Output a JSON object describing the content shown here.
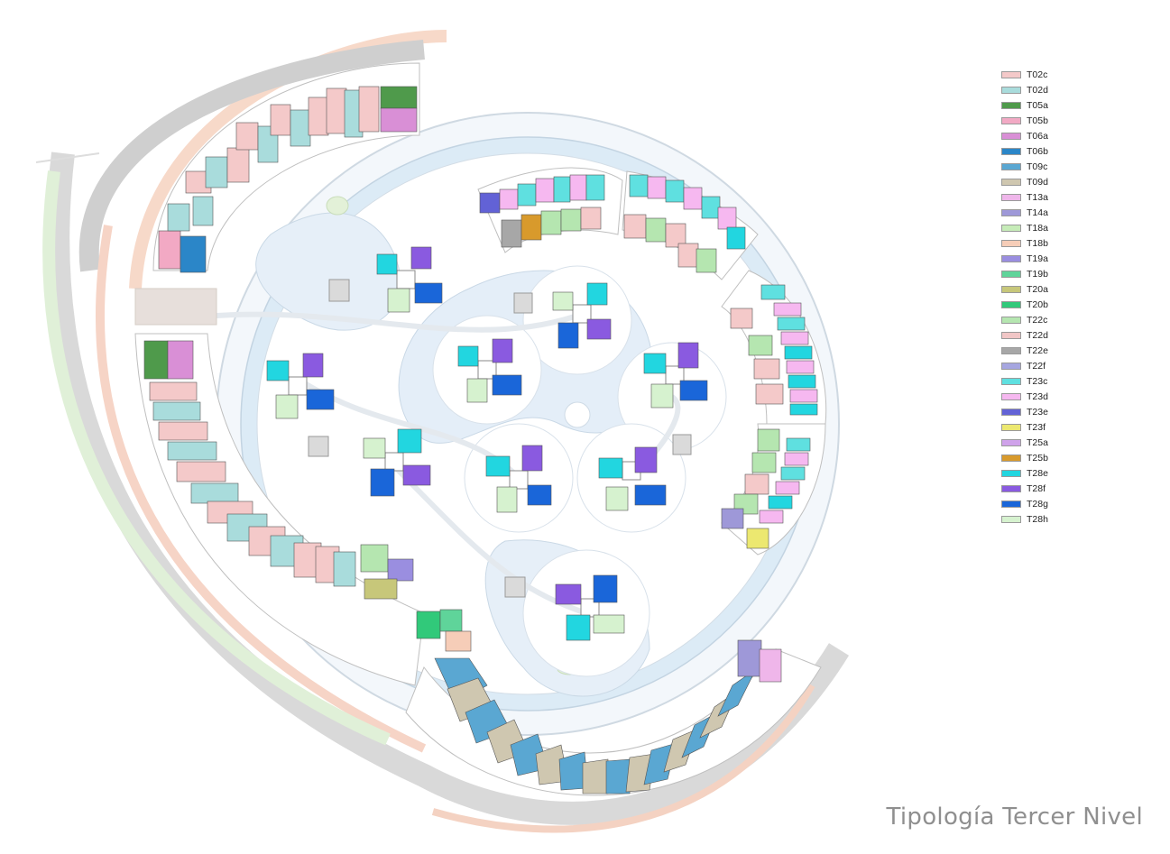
{
  "title": "Tipología Tercer Nivel",
  "legend": [
    {
      "code": "T02c",
      "color": "#f4c9c9"
    },
    {
      "code": "T02d",
      "color": "#a9dcdc"
    },
    {
      "code": "T05a",
      "color": "#4f9a4b"
    },
    {
      "code": "T05b",
      "color": "#f2a9c4"
    },
    {
      "code": "T06a",
      "color": "#d98fd6"
    },
    {
      "code": "T06b",
      "color": "#2b86c8"
    },
    {
      "code": "T09c",
      "color": "#5aa7d2"
    },
    {
      "code": "T09d",
      "color": "#cfc7b0"
    },
    {
      "code": "T13a",
      "color": "#efb6ea"
    },
    {
      "code": "T14a",
      "color": "#9e98d8"
    },
    {
      "code": "T18a",
      "color": "#c6ecb8"
    },
    {
      "code": "T18b",
      "color": "#f6cdb8"
    },
    {
      "code": "T19a",
      "color": "#9a8ee0"
    },
    {
      "code": "T19b",
      "color": "#5fd49a"
    },
    {
      "code": "T20a",
      "color": "#c7c77a"
    },
    {
      "code": "T20b",
      "color": "#31c97a"
    },
    {
      "code": "T22c",
      "color": "#b5e6b0"
    },
    {
      "code": "T22d",
      "color": "#f1c6c6"
    },
    {
      "code": "T22e",
      "color": "#a7a7a7"
    },
    {
      "code": "T22f",
      "color": "#a6a6e0"
    },
    {
      "code": "T23c",
      "color": "#5fe0e0"
    },
    {
      "code": "T23d",
      "color": "#f6b8f0"
    },
    {
      "code": "T23e",
      "color": "#6262d6"
    },
    {
      "code": "T23f",
      "color": "#ece870"
    },
    {
      "code": "T25a",
      "color": "#cfa2ea"
    },
    {
      "code": "T25b",
      "color": "#d89a2c"
    },
    {
      "code": "T28e",
      "color": "#22d6e0"
    },
    {
      "code": "T28f",
      "color": "#8a5ae0"
    },
    {
      "code": "T28g",
      "color": "#1a66d9"
    },
    {
      "code": "T28h",
      "color": "#d6f2cf"
    }
  ]
}
